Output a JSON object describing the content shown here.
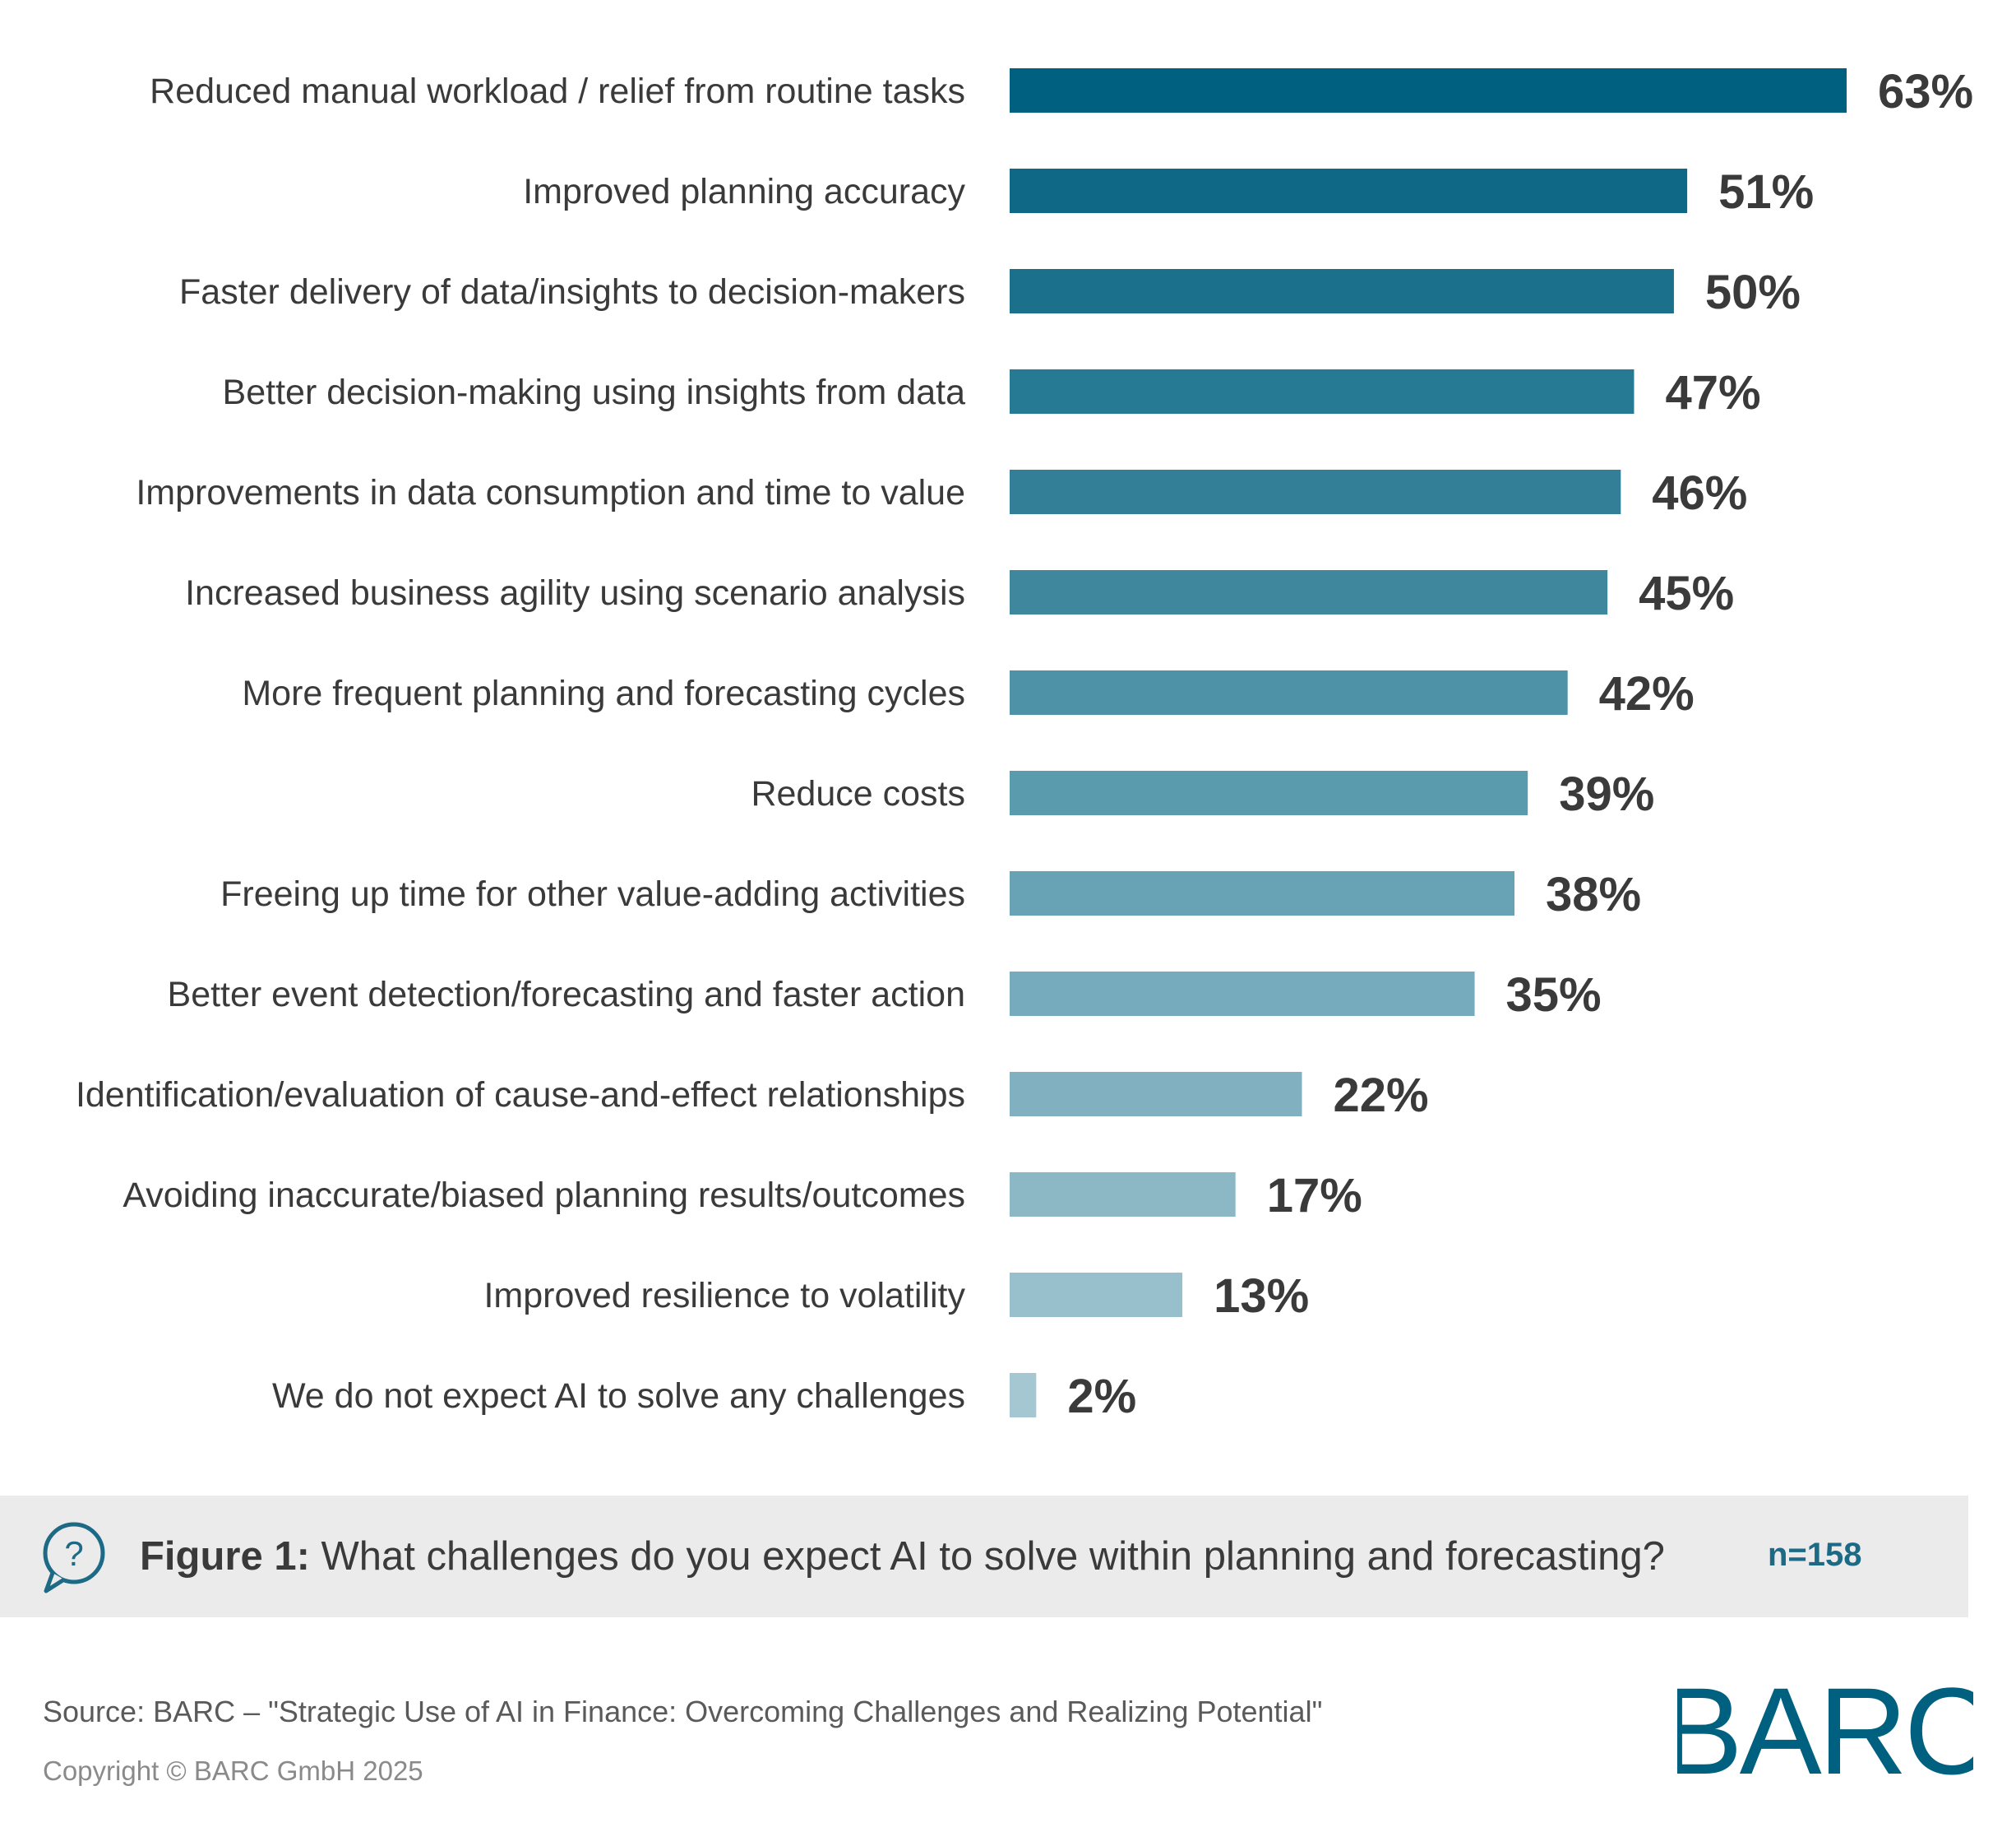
{
  "chart_data": {
    "type": "bar",
    "orientation": "horizontal",
    "categories": [
      "Reduced manual workload / relief from routine tasks",
      "Improved planning accuracy",
      "Faster delivery of data/insights to decision-makers",
      "Better decision-making using insights from data",
      "Improvements in data consumption and time to value",
      "Increased business agility using scenario analysis",
      "More frequent planning and forecasting cycles",
      "Reduce costs",
      "Freeing up time for other value-adding activities",
      "Better event detection/forecasting and faster action",
      "Identification/evaluation of cause-and-effect relationships",
      "Avoiding inaccurate/biased planning results/outcomes",
      "Improved resilience to volatility",
      "We do not expect AI to solve any challenges"
    ],
    "values": [
      63,
      51,
      50,
      47,
      46,
      45,
      42,
      39,
      38,
      35,
      22,
      17,
      13,
      2
    ],
    "value_labels": [
      "63%",
      "51%",
      "50%",
      "47%",
      "46%",
      "45%",
      "42%",
      "39%",
      "38%",
      "35%",
      "22%",
      "17%",
      "13%",
      "2%"
    ],
    "unit": "%",
    "xlim": [
      0,
      63
    ],
    "grid": false,
    "legend": "none",
    "bar_colors": [
      "#00607f",
      "#0e6886",
      "#1b718c",
      "#277a93",
      "#337f98",
      "#3f879d",
      "#4e92a7",
      "#5b9bae",
      "#67a2b5",
      "#75abbc",
      "#81b1c0",
      "#8cb8c6",
      "#98c0cc",
      "#a5c7d2"
    ]
  },
  "caption": {
    "figure_label": "Figure 1:",
    "question": "What challenges do you expect AI to solve within planning and forecasting?",
    "sample_size": "n=158",
    "icon": "question-speech-bubble-icon"
  },
  "footer": {
    "source": "Source: BARC – \"Strategic Use of AI in Finance: Overcoming Challenges and Realizing Potential\"",
    "copyright": "Copyright © BARC GmbH 2025",
    "logo_text": "BARC"
  },
  "colors": {
    "brand": "#00607f",
    "caption_bg": "#ebebeb",
    "text": "#3a3a3a"
  }
}
